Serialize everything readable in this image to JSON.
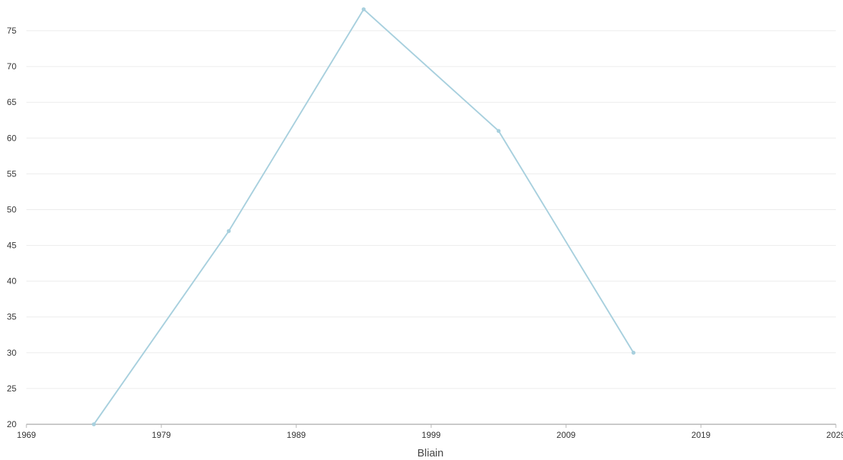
{
  "chart_data": {
    "type": "line",
    "title": "",
    "xlabel": "Bliain",
    "ylabel": "",
    "xlim": [
      1969,
      2029
    ],
    "ylim": [
      20,
      78
    ],
    "x_ticks": [
      1969,
      1979,
      1989,
      1999,
      2009,
      2019,
      2029
    ],
    "y_ticks": [
      20,
      25,
      30,
      35,
      40,
      45,
      50,
      55,
      60,
      65,
      70,
      75
    ],
    "grid": true,
    "legend": "none",
    "series": [
      {
        "color": "#a8d0de",
        "points": [
          {
            "x": 1974,
            "y": 20
          },
          {
            "x": 1984,
            "y": 47
          },
          {
            "x": 1994,
            "y": 78
          },
          {
            "x": 2004,
            "y": 61
          },
          {
            "x": 2014,
            "y": 30
          }
        ]
      }
    ]
  }
}
